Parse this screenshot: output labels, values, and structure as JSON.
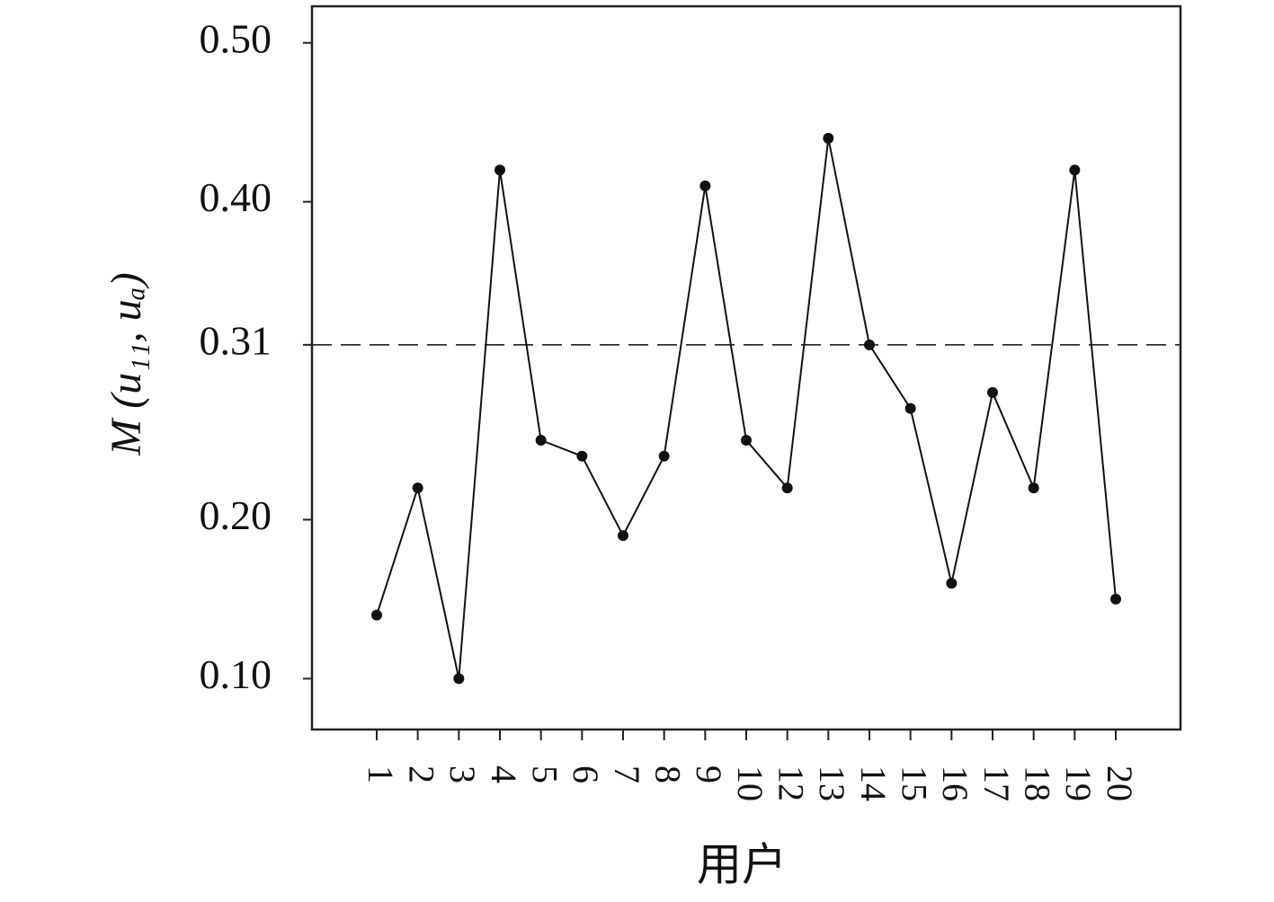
{
  "chart_data": {
    "type": "line",
    "y_label": "M (u₁₁, uₐ)",
    "x_label": "用户",
    "categories": [
      "1",
      "2",
      "3",
      "4",
      "5",
      "6",
      "7",
      "8",
      "9",
      "10",
      "12",
      "13",
      "14",
      "15",
      "16",
      "17",
      "18",
      "19",
      "20"
    ],
    "values": [
      0.14,
      0.22,
      0.1,
      0.42,
      0.25,
      0.24,
      0.19,
      0.24,
      0.41,
      0.25,
      0.22,
      0.44,
      0.31,
      0.27,
      0.16,
      0.28,
      0.22,
      0.42,
      0.15
    ],
    "color": "#111111",
    "reference_line": 0.31,
    "ylim": [
      0.068,
      0.523
    ],
    "yticks": [
      {
        "value": 0.1,
        "label": "0.10"
      },
      {
        "value": 0.2,
        "label": "0.20"
      },
      {
        "value": 0.31,
        "label": "0.31"
      },
      {
        "value": 0.4,
        "label": "0.40"
      },
      {
        "value": 0.5,
        "label": "0.50"
      }
    ]
  }
}
